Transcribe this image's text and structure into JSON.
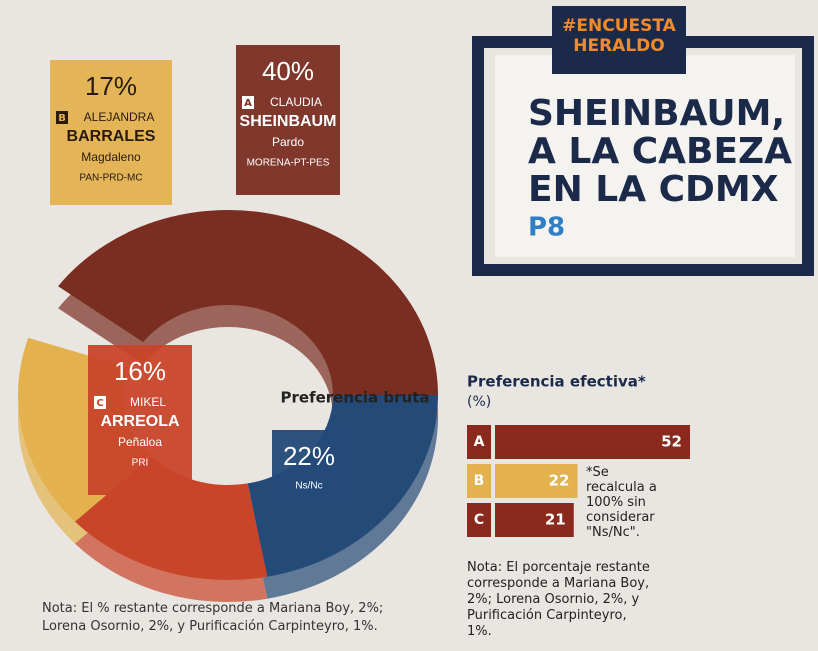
{
  "header": {
    "tag_line1": "#ENCUESTA",
    "tag_line2": "HERALDO",
    "headline": [
      "SHEINBAUM,",
      "A LA CABEZA",
      "EN LA CDMX"
    ],
    "page": "P8"
  },
  "chart_data": [
    {
      "type": "donut",
      "title": "Preferencia bruta",
      "categories": [
        {
          "letter": "A",
          "first": "CLAUDIA",
          "last": "SHEINBAUM",
          "second": "Pardo",
          "party": "MORENA-PT-PES"
        },
        {
          "letter": null,
          "first": null,
          "last": null,
          "second": null,
          "party": "Ns/Nc"
        },
        {
          "letter": "C",
          "first": "MIKEL",
          "last": "ARREOLA",
          "second": "Peñaloa",
          "party": "PRI"
        },
        {
          "letter": "B",
          "first": "ALEJANDRA",
          "last": "BARRALES",
          "second": "Magdaleno",
          "party": "PAN-PRD-MC"
        }
      ],
      "values": [
        40,
        22,
        16,
        17
      ],
      "value_labels": [
        "40%",
        "22%",
        "16%",
        "17%"
      ],
      "colors": [
        "#7a2e22",
        "#244a78",
        "#c8452a",
        "#e3b24e"
      ],
      "note": "Nota: El % restante corresponde a Mariana Boy, 2%; Lorena Osornio, 2%, y Purificación Carpinteyro, 1%."
    },
    {
      "type": "bar",
      "title": "Preferencia efectiva*",
      "subtitle": "(%)",
      "categories": [
        "A",
        "B",
        "C"
      ],
      "values": [
        52,
        22,
        21
      ],
      "colors": [
        "#8a2a1c",
        "#e3b24e",
        "#8a2a1c"
      ],
      "annotation": "*Se recalcula a 100% sin considerar \"Ns/Nc\".",
      "note": "Nota: El porcentaje restante corresponde a Mariana Boy, 2%; Lorena Osornio, 2%, y Purificación Carpinteyro, 1%."
    }
  ]
}
